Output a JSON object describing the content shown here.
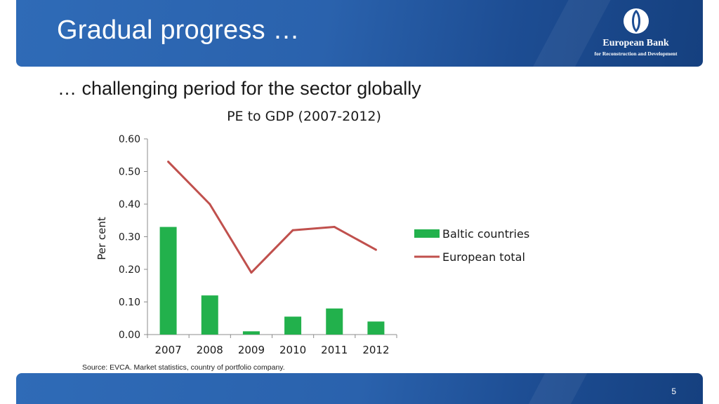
{
  "slide": {
    "title": "Gradual progress …",
    "subtitle": "… challenging period for the sector globally",
    "source": "Source: EVCA. Market statistics, country of portfolio company.",
    "page_number": "5"
  },
  "logo": {
    "name": "European Bank",
    "subname": "for Reconstruction and Development"
  },
  "colors": {
    "header_blue": "#2a62ad",
    "bar_green": "#22b14c",
    "line_red": "#c0504d"
  },
  "chart_data": {
    "type": "bar",
    "title": "PE to GDP (2007-2012)",
    "ylabel": "Per cent",
    "xlabel": "",
    "categories": [
      "2007",
      "2008",
      "2009",
      "2010",
      "2011",
      "2012"
    ],
    "ylim": [
      0,
      0.6
    ],
    "yticks": [
      "0.00",
      "0.10",
      "0.20",
      "0.30",
      "0.40",
      "0.50",
      "0.60"
    ],
    "grid": false,
    "legend_position": "right",
    "series": [
      {
        "name": "Baltic countries",
        "type": "bar",
        "values": [
          0.33,
          0.12,
          0.01,
          0.055,
          0.08,
          0.04
        ]
      },
      {
        "name": "European total",
        "type": "line",
        "values": [
          0.53,
          0.4,
          0.19,
          0.32,
          0.33,
          0.26
        ]
      }
    ]
  }
}
